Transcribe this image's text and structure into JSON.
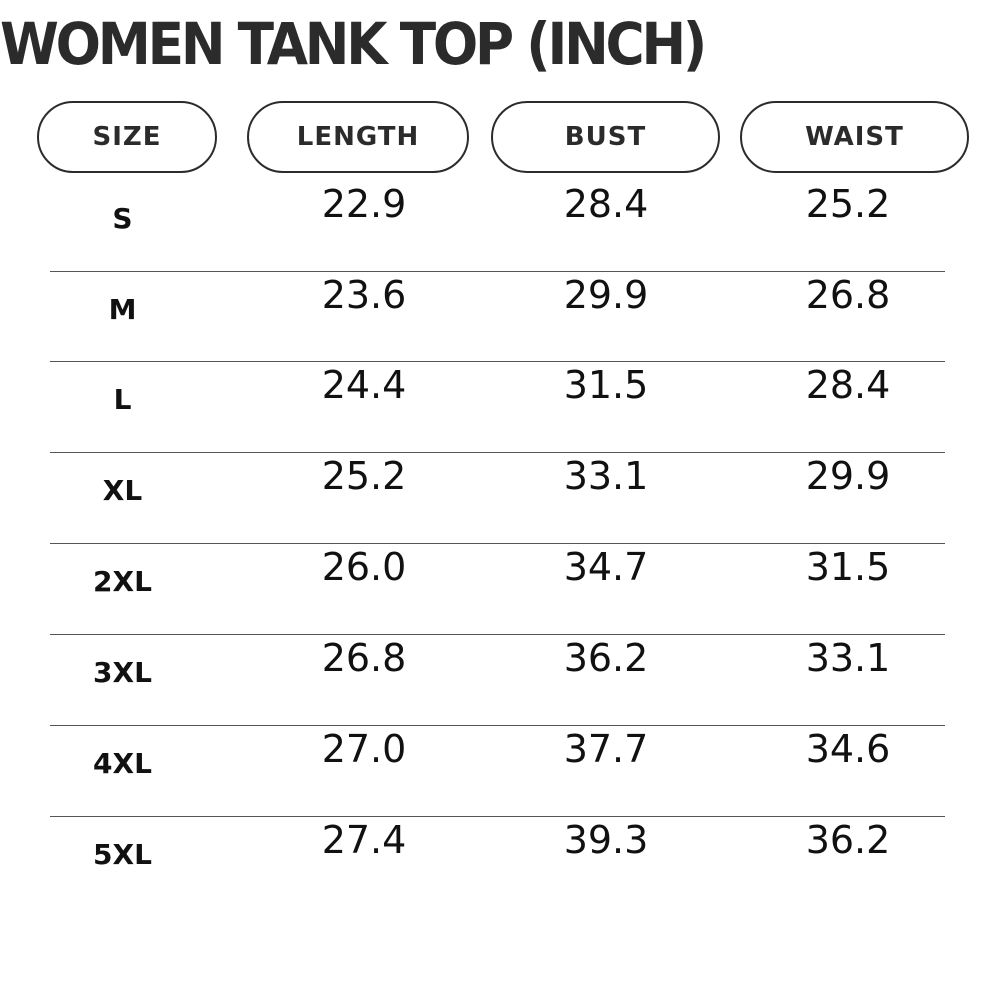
{
  "title": "WOMEN TANK TOP (INCH)",
  "headers": {
    "size": "SIZE",
    "length": "LENGTH",
    "bust": "BUST",
    "waist": "WAIST"
  },
  "rows": [
    {
      "size": "S",
      "length": "22.9",
      "bust": "28.4",
      "waist": "25.2"
    },
    {
      "size": "M",
      "length": "23.6",
      "bust": "29.9",
      "waist": "26.8"
    },
    {
      "size": "L",
      "length": "24.4",
      "bust": "31.5",
      "waist": "28.4"
    },
    {
      "size": "XL",
      "length": "25.2",
      "bust": "33.1",
      "waist": "29.9"
    },
    {
      "size": "2XL",
      "length": "26.0",
      "bust": "34.7",
      "waist": "31.5"
    },
    {
      "size": "3XL",
      "length": "26.8",
      "bust": "36.2",
      "waist": "33.1"
    },
    {
      "size": "4XL",
      "length": "27.0",
      "bust": "37.7",
      "waist": "34.6"
    },
    {
      "size": "5XL",
      "length": "27.4",
      "bust": "39.3",
      "waist": "36.2"
    }
  ]
}
